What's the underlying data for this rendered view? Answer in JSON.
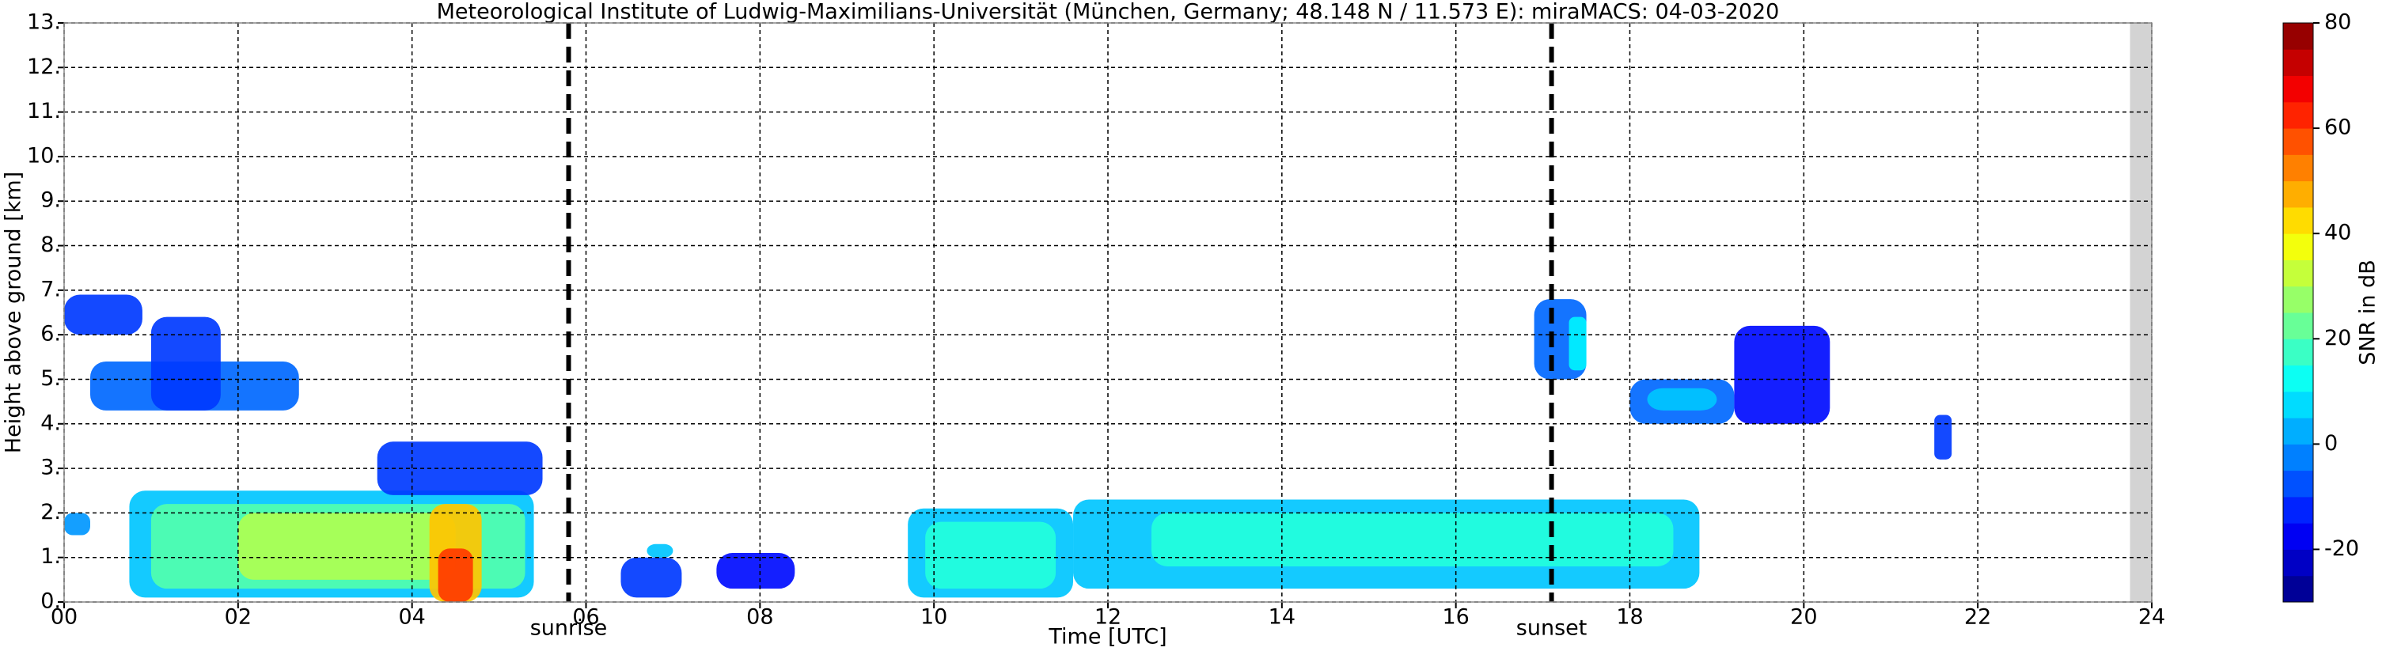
{
  "chart_data": {
    "type": "radar",
    "title": "Meteorological Institute of Ludwig-Maximilians-Universität (München, Germany; 48.148 N / 11.573 E):    miraMACS: 04-03-2020",
    "x_label": "Time [UTC]",
    "y_label": "Height above ground [km]",
    "colorbar_label": "SNR in dB",
    "xlim": [
      0,
      24
    ],
    "xticks": [
      {
        "value": 0,
        "label": "00"
      },
      {
        "value": 2,
        "label": "02"
      },
      {
        "value": 4,
        "label": "04"
      },
      {
        "value": 6,
        "label": "06"
      },
      {
        "value": 8,
        "label": "08"
      },
      {
        "value": 10,
        "label": "10"
      },
      {
        "value": 12,
        "label": "12"
      },
      {
        "value": 14,
        "label": "14"
      },
      {
        "value": 16,
        "label": "16"
      },
      {
        "value": 18,
        "label": "18"
      },
      {
        "value": 20,
        "label": "20"
      },
      {
        "value": 22,
        "label": "22"
      },
      {
        "value": 24,
        "label": "24"
      }
    ],
    "ylim": [
      0,
      13
    ],
    "yticks": [
      {
        "value": 0,
        "label": "0."
      },
      {
        "value": 1,
        "label": "1."
      },
      {
        "value": 2,
        "label": "2."
      },
      {
        "value": 3,
        "label": "3."
      },
      {
        "value": 4,
        "label": "4."
      },
      {
        "value": 5,
        "label": "5."
      },
      {
        "value": 6,
        "label": "6."
      },
      {
        "value": 7,
        "label": "7."
      },
      {
        "value": 8,
        "label": "8."
      },
      {
        "value": 9,
        "label": "9."
      },
      {
        "value": 10,
        "label": "10."
      },
      {
        "value": 11,
        "label": "11."
      },
      {
        "value": 12,
        "label": "12."
      },
      {
        "value": 13,
        "label": "13."
      }
    ],
    "clim": [
      -30,
      80
    ],
    "cticks": [
      -20,
      0,
      20,
      40,
      60,
      80
    ],
    "clevel_step": 5,
    "grid": true,
    "missing": [
      23.75,
      24
    ],
    "annotations": [
      {
        "x": 5.8,
        "label": "sunrise"
      },
      {
        "x": 17.1,
        "label": "sunset"
      }
    ],
    "echoes": [
      {
        "x": [
          0,
          0.3
        ],
        "y": [
          1.5,
          2.0
        ],
        "snr": 0
      },
      {
        "x": [
          0.75,
          5.4
        ],
        "y": [
          0.1,
          2.5
        ],
        "snr": 5
      },
      {
        "x": [
          1.0,
          5.3
        ],
        "y": [
          0.3,
          2.2
        ],
        "snr": 20
      },
      {
        "x": [
          2.0,
          4.5
        ],
        "y": [
          0.5,
          2.0
        ],
        "snr": 30
      },
      {
        "x": [
          3.6,
          5.5
        ],
        "y": [
          2.4,
          3.6
        ],
        "snr": -10
      },
      {
        "x": [
          4.2,
          4.8
        ],
        "y": [
          0,
          2.2
        ],
        "snr": 45
      },
      {
        "x": [
          4.3,
          4.7
        ],
        "y": [
          0,
          1.2
        ],
        "snr": 60
      },
      {
        "x": [
          0,
          0.9
        ],
        "y": [
          6.0,
          6.9
        ],
        "snr": -10
      },
      {
        "x": [
          0.3,
          2.7
        ],
        "y": [
          4.3,
          5.4
        ],
        "snr": -5
      },
      {
        "x": [
          1.0,
          1.8
        ],
        "y": [
          4.3,
          6.4
        ],
        "snr": -10
      },
      {
        "x": [
          6.4,
          7.1
        ],
        "y": [
          0.1,
          1.0
        ],
        "snr": -10
      },
      {
        "x": [
          6.7,
          7.0
        ],
        "y": [
          1.0,
          1.3
        ],
        "snr": 5
      },
      {
        "x": [
          7.5,
          8.4
        ],
        "y": [
          0.3,
          1.1
        ],
        "snr": -15
      },
      {
        "x": [
          9.7,
          11.6
        ],
        "y": [
          0.1,
          2.1
        ],
        "snr": 5
      },
      {
        "x": [
          9.9,
          11.4
        ],
        "y": [
          0.3,
          1.8
        ],
        "snr": 15
      },
      {
        "x": [
          11.6,
          18.8
        ],
        "y": [
          0.3,
          2.3
        ],
        "snr": 5
      },
      {
        "x": [
          12.5,
          18.5
        ],
        "y": [
          0.8,
          2.0
        ],
        "snr": 15
      },
      {
        "x": [
          16.9,
          17.5
        ],
        "y": [
          5.0,
          6.8
        ],
        "snr": -5
      },
      {
        "x": [
          17.3,
          17.5
        ],
        "y": [
          5.2,
          6.4
        ],
        "snr": 10
      },
      {
        "x": [
          18.0,
          19.2
        ],
        "y": [
          4.0,
          5.0
        ],
        "snr": -5
      },
      {
        "x": [
          18.2,
          19.0
        ],
        "y": [
          4.3,
          4.8
        ],
        "snr": 5
      },
      {
        "x": [
          19.2,
          20.3
        ],
        "y": [
          4.0,
          6.2
        ],
        "snr": -15
      },
      {
        "x": [
          21.5,
          21.7
        ],
        "y": [
          3.2,
          4.2
        ],
        "snr": -10
      }
    ]
  }
}
